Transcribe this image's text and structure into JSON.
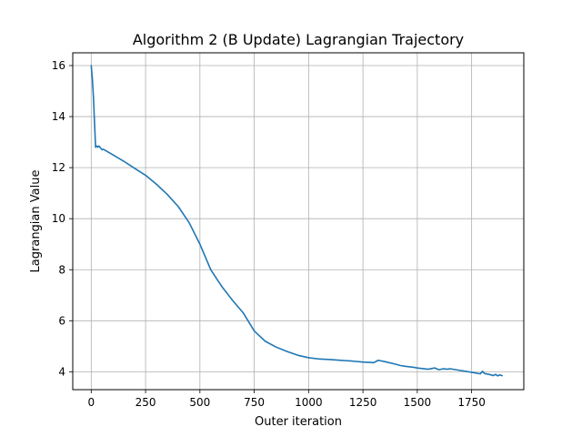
{
  "chart_data": {
    "type": "line",
    "title": "Algorithm 2 (B Update) Lagrangian Trajectory",
    "xlabel": "Outer iteration",
    "ylabel": "Lagrangian Value",
    "xlim": [
      -85,
      1990
    ],
    "ylim": [
      3.3,
      16.5
    ],
    "xticks": [
      0,
      250,
      500,
      750,
      1000,
      1250,
      1500,
      1750
    ],
    "yticks": [
      4,
      6,
      8,
      10,
      12,
      14,
      16
    ],
    "grid": true,
    "series": [
      {
        "color": "#1f77b4",
        "x": [
          0,
          5,
          10,
          15,
          20,
          25,
          30,
          35,
          40,
          45,
          50,
          55,
          60,
          100,
          150,
          200,
          250,
          300,
          350,
          400,
          450,
          500,
          550,
          600,
          650,
          700,
          750,
          800,
          850,
          900,
          950,
          1000,
          1050,
          1100,
          1150,
          1200,
          1250,
          1300,
          1320,
          1350,
          1400,
          1420,
          1440,
          1460,
          1480,
          1500,
          1550,
          1580,
          1600,
          1620,
          1640,
          1650,
          1700,
          1750,
          1790,
          1800,
          1810,
          1830,
          1850,
          1860,
          1870,
          1880,
          1890
        ],
        "y": [
          16.0,
          15.5,
          14.8,
          13.8,
          12.8,
          12.85,
          12.8,
          12.85,
          12.8,
          12.75,
          12.7,
          12.72,
          12.7,
          12.5,
          12.25,
          11.97,
          11.7,
          11.35,
          10.95,
          10.48,
          9.85,
          9.0,
          8.0,
          7.35,
          6.8,
          6.3,
          5.6,
          5.2,
          4.97,
          4.8,
          4.65,
          4.55,
          4.5,
          4.48,
          4.45,
          4.42,
          4.38,
          4.36,
          4.45,
          4.4,
          4.3,
          4.25,
          4.22,
          4.2,
          4.18,
          4.15,
          4.1,
          4.15,
          4.08,
          4.12,
          4.1,
          4.12,
          4.05,
          3.98,
          3.92,
          4.02,
          3.93,
          3.9,
          3.85,
          3.9,
          3.84,
          3.88,
          3.85
        ]
      }
    ]
  }
}
